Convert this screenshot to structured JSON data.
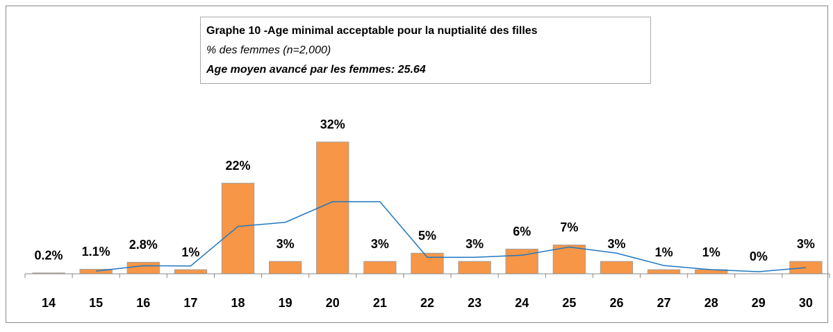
{
  "chart_data": {
    "type": "bar",
    "title": "Graphe 10 -Age minimal acceptable  pour la nuptialité des filles",
    "subtitle": "% des femmes (n=2,000)",
    "annotation": "Age moyen avancé par les femmes: 25.64",
    "categories": [
      "14",
      "15",
      "16",
      "17",
      "18",
      "19",
      "20",
      "21",
      "22",
      "23",
      "24",
      "25",
      "26",
      "27",
      "28",
      "29",
      "30"
    ],
    "values": [
      0.2,
      1.1,
      2.8,
      1,
      22,
      3,
      32,
      3,
      5,
      3,
      6,
      7,
      3,
      1,
      1,
      0,
      3
    ],
    "value_labels": [
      "0.2%",
      "1.1%",
      "2.8%",
      "1%",
      "22%",
      "3%",
      "32%",
      "3%",
      "5%",
      "3%",
      "6%",
      "7%",
      "3%",
      "1%",
      "1%",
      "0%",
      "3%"
    ],
    "color": "#f79646",
    "trendline": {
      "color": "#1f77c4",
      "values": [
        null,
        0.65,
        1.95,
        1.9,
        11.5,
        12.5,
        17.5,
        17.5,
        4,
        4,
        4.5,
        6.5,
        5,
        2,
        1,
        0.5,
        1.5
      ]
    },
    "ylim": [
      0,
      34
    ]
  }
}
